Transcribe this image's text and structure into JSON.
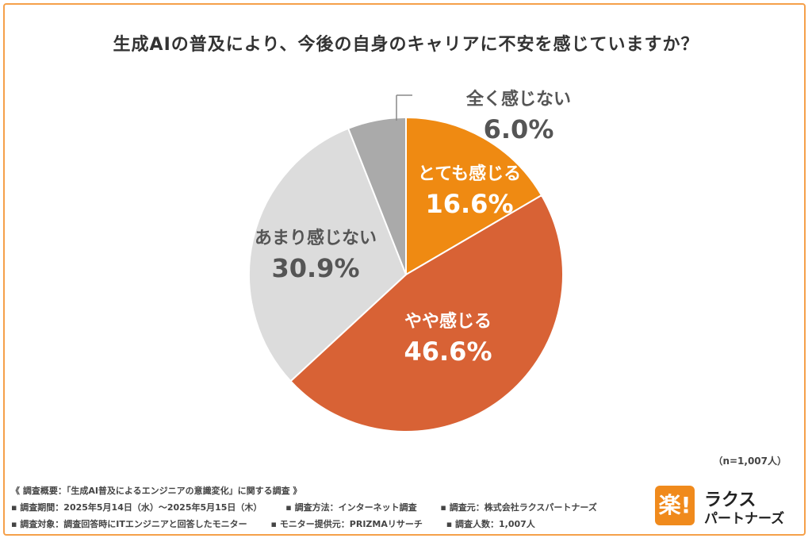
{
  "title": "生成AIの普及により、今後の自身のキャリアに不安を感じていますか？",
  "chart_data": {
    "type": "pie",
    "labels": [
      "とても感じる",
      "やや感じる",
      "あまり感じない",
      "全く感じない"
    ],
    "values": [
      16.6,
      46.6,
      30.9,
      6.0
    ],
    "value_labels": [
      "16.6%",
      "46.6%",
      "30.9%",
      "6.0%"
    ],
    "colors": [
      "#ef8a12",
      "#d86235",
      "#dcdcdc",
      "#aaaaaa"
    ],
    "start": "12 o'clock, clockwise"
  },
  "sample_size": "（n=1,007人）",
  "notes": {
    "overview": "《 調査概要：「生成AI普及によるエンジニアの意識変化」に関する調査 》",
    "row1": [
      "▪ 調査期間：2025年5月14日（水）〜2025年5月15日（木）",
      "▪ 調査方法：インターネット調査",
      "▪ 調査元：株式会社ラクスパートナーズ"
    ],
    "row2": [
      "▪ 調査対象：調査回答時にITエンジニアと回答したモニター",
      "▪ モニター提供元：PRIZMAリサーチ",
      "▪ 調査人数：1,007人"
    ]
  },
  "logo": {
    "mark": "楽!",
    "line1": "ラクス",
    "line2": "パートナーズ",
    "color": "#f08a1c"
  }
}
